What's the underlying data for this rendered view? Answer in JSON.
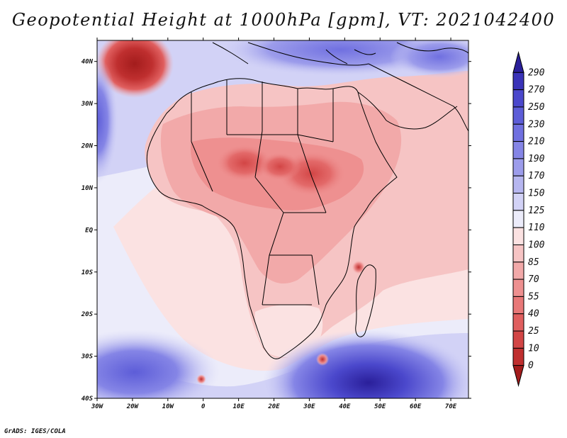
{
  "title": "Geopotential Height at 1000hPa [gpm], VT: 2021042400",
  "credit": "GrADS: IGES/COLA",
  "map": {
    "lat_labels": [
      "40N",
      "30N",
      "20N",
      "10N",
      "EQ",
      "10S",
      "20S",
      "30S",
      "40S"
    ],
    "lon_labels": [
      "30W",
      "20W",
      "10W",
      "0",
      "10E",
      "20E",
      "30E",
      "40E",
      "50E",
      "60E",
      "70E"
    ],
    "lat_range": [
      -40,
      45
    ],
    "lon_range": [
      -30,
      75
    ]
  },
  "colorbar": {
    "levels": [
      "290",
      "270",
      "250",
      "230",
      "210",
      "190",
      "170",
      "150",
      "125",
      "110",
      "100",
      "85",
      "70",
      "55",
      "40",
      "25",
      "10",
      "0"
    ],
    "colors": [
      "#2a1f9a",
      "#3a33b8",
      "#4b48cc",
      "#5d5dd8",
      "#7070e0",
      "#8585e6",
      "#9c9ceb",
      "#b6b6f0",
      "#d2d2f6",
      "#ececfa",
      "#fbe2e2",
      "#f6c4c4",
      "#f2a9a9",
      "#ee9090",
      "#e87878",
      "#e05f5f",
      "#d24545",
      "#bf2f2f",
      "#a31c1c"
    ]
  }
}
